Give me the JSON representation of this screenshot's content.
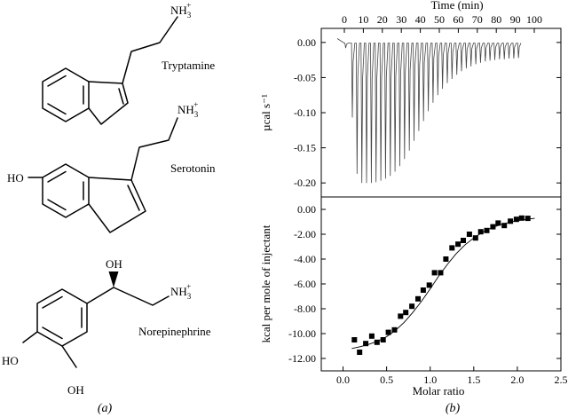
{
  "figure": {
    "panel_a_label": "(a)",
    "panel_b_label": "(b)"
  },
  "molecules": [
    {
      "name": "Tryptamine",
      "amine": "NH",
      "amine_sub": "3",
      "amine_sup": "+"
    },
    {
      "name": "Serotonin",
      "amine": "NH",
      "amine_sub": "3",
      "amine_sup": "+",
      "hydroxyl": "HO"
    },
    {
      "name": "Norepinephrine",
      "amine": "NH",
      "amine_sub": "3",
      "amine_sup": "+",
      "hydroxyl_top": "OH",
      "hydroxyl_left1": "HO",
      "hydroxyl_left2": "OH"
    }
  ],
  "chart_data": [
    {
      "type": "line",
      "top_axis_label": "Time (min)",
      "ylabel": "µcal s⁻¹",
      "xlim": [
        0,
        100
      ],
      "ylim": [
        -0.22,
        0.02
      ],
      "x_ticks": [
        0,
        10,
        20,
        30,
        40,
        50,
        60,
        70,
        80,
        90,
        100
      ],
      "y_ticks": [
        0.0,
        -0.05,
        -0.1,
        -0.15,
        -0.2
      ],
      "y_tick_labels": [
        "0.00",
        "-0.05",
        "-0.10",
        "-0.15",
        "-0.20"
      ],
      "baseline": -0.001,
      "injections": {
        "time_min": [
          0.5,
          4,
          6.5,
          9,
          11.5,
          14,
          16.5,
          19,
          21.5,
          24,
          26.5,
          29,
          31.5,
          34,
          36.5,
          39,
          41.5,
          44,
          46.5,
          49,
          51.5,
          54,
          56.5,
          59,
          61.5,
          64,
          66.5,
          69,
          71.5,
          74,
          76.5,
          79,
          81.5,
          84,
          86.5,
          89,
          91.5
        ],
        "peak_ucal_s": [
          -0.008,
          -0.107,
          -0.187,
          -0.2,
          -0.2,
          -0.2,
          -0.199,
          -0.197,
          -0.194,
          -0.19,
          -0.184,
          -0.176,
          -0.166,
          -0.154,
          -0.14,
          -0.126,
          -0.112,
          -0.098,
          -0.086,
          -0.075,
          -0.066,
          -0.058,
          -0.052,
          -0.046,
          -0.041,
          -0.037,
          -0.034,
          -0.031,
          -0.029,
          -0.027,
          -0.026,
          -0.025,
          -0.024,
          -0.024,
          -0.023,
          -0.023,
          -0.022
        ]
      }
    },
    {
      "type": "scatter",
      "xlabel": "Molar ratio",
      "ylabel": "kcal per mole of injectant",
      "xlim": [
        -0.25,
        2.5
      ],
      "ylim": [
        -13,
        1
      ],
      "x_ticks": [
        0.0,
        0.5,
        1.0,
        1.5,
        2.0,
        2.5
      ],
      "x_tick_labels": [
        "0.0",
        "0.5",
        "1.0",
        "1.5",
        "2.0",
        "2.5"
      ],
      "y_ticks": [
        0,
        -2,
        -4,
        -6,
        -8,
        -10,
        -12
      ],
      "y_tick_labels": [
        "0.00",
        "-2.00",
        "-4.00",
        "-6.00",
        "-8.00",
        "-10.00",
        "-12.00"
      ],
      "points": {
        "x": [
          0.13,
          0.19,
          0.26,
          0.33,
          0.39,
          0.46,
          0.52,
          0.59,
          0.66,
          0.72,
          0.79,
          0.86,
          0.92,
          0.99,
          1.05,
          1.12,
          1.18,
          1.25,
          1.32,
          1.38,
          1.45,
          1.52,
          1.58,
          1.65,
          1.72,
          1.78,
          1.85,
          1.92,
          1.99,
          2.05,
          2.12
        ],
        "y": [
          -10.5,
          -11.5,
          -10.8,
          -10.2,
          -10.7,
          -10.5,
          -9.9,
          -9.7,
          -8.6,
          -8.3,
          -7.8,
          -7.2,
          -6.5,
          -6.1,
          -5.1,
          -5.1,
          -4.0,
          -3.1,
          -2.8,
          -2.5,
          -2.0,
          -2.3,
          -1.8,
          -1.7,
          -1.4,
          -1.1,
          -1.3,
          -0.95,
          -0.8,
          -0.7,
          -0.72
        ]
      },
      "fit": {
        "x": [
          0.1,
          0.2,
          0.3,
          0.4,
          0.5,
          0.6,
          0.7,
          0.8,
          0.9,
          1.0,
          1.1,
          1.2,
          1.3,
          1.4,
          1.5,
          1.6,
          1.7,
          1.8,
          1.9,
          2.0,
          2.1,
          2.2
        ],
        "y": [
          -11.2,
          -11.05,
          -10.85,
          -10.6,
          -10.25,
          -9.75,
          -9.1,
          -8.3,
          -7.4,
          -6.4,
          -5.35,
          -4.4,
          -3.55,
          -2.85,
          -2.3,
          -1.85,
          -1.5,
          -1.25,
          -1.05,
          -0.9,
          -0.8,
          -0.72
        ]
      }
    }
  ]
}
